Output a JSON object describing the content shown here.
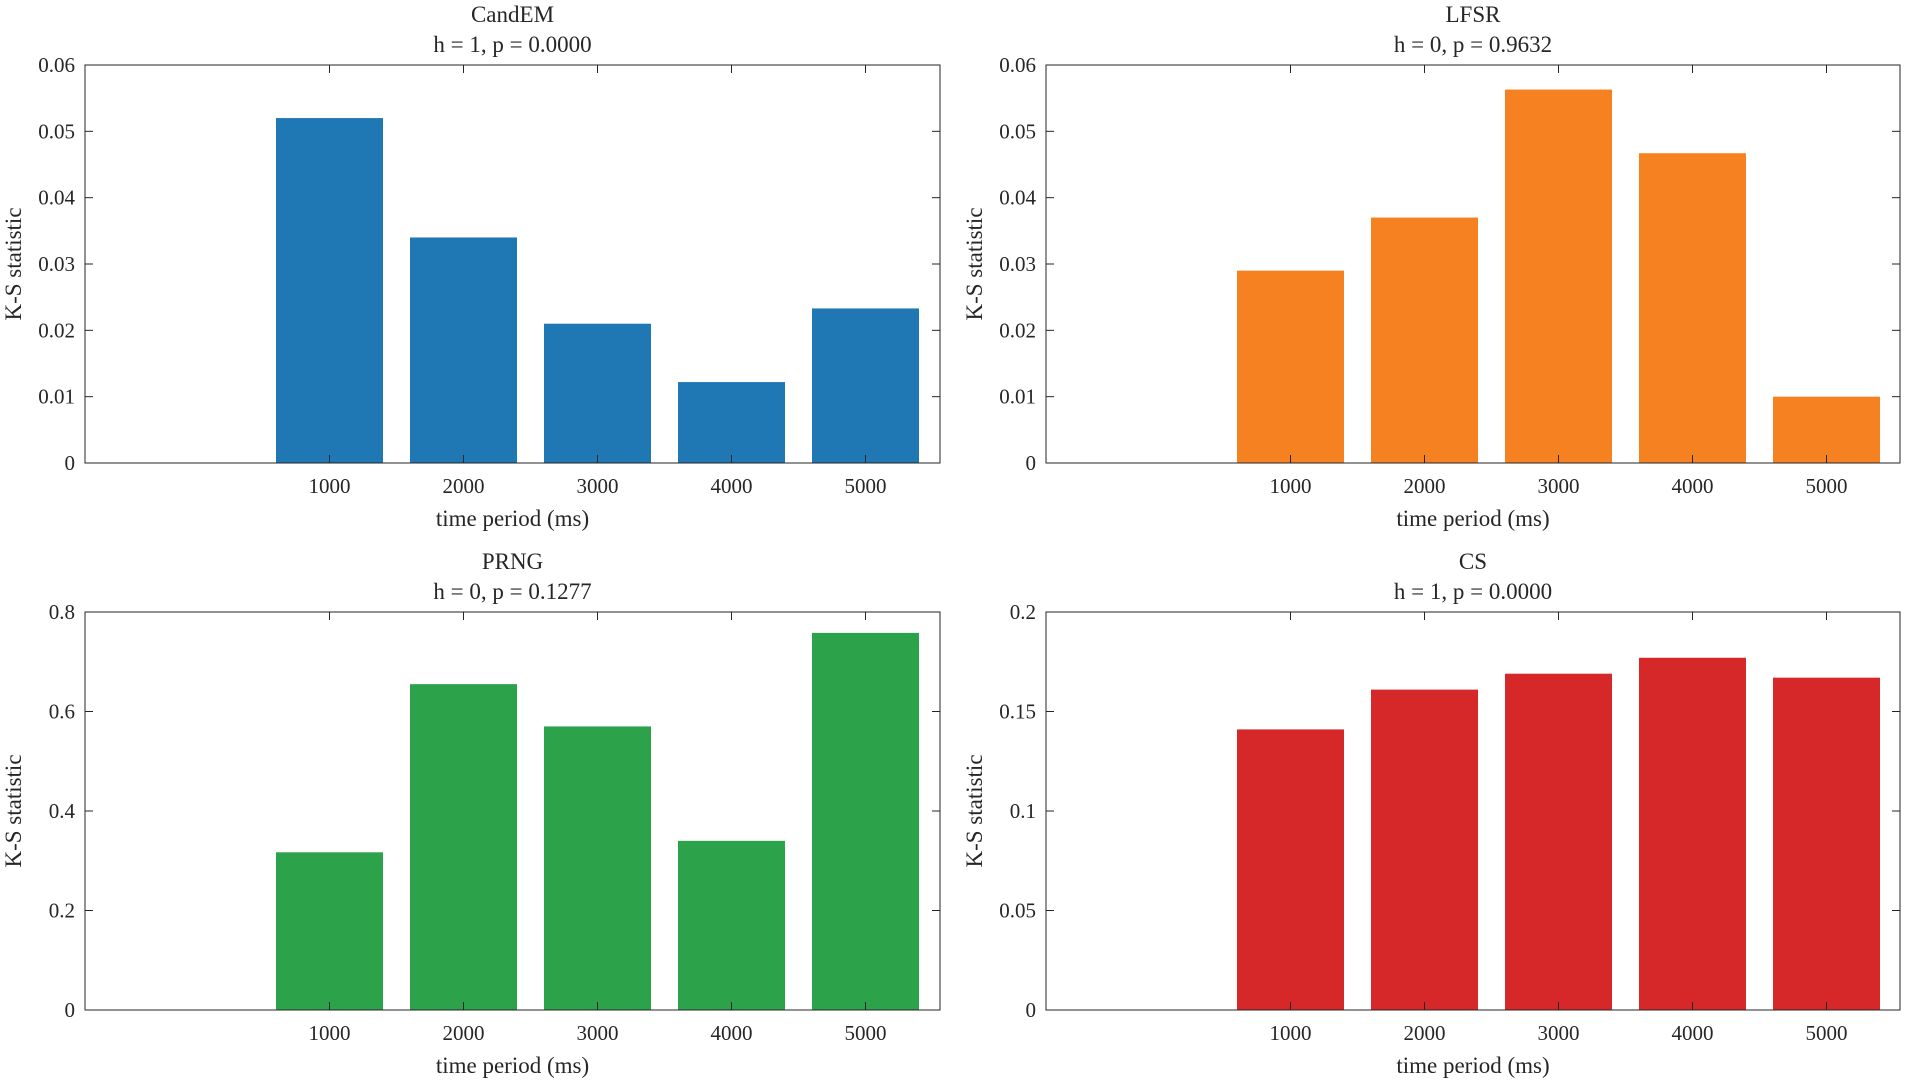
{
  "chart_data": [
    {
      "type": "bar",
      "title": "CandEM",
      "subtitle": "h = 1, p = 0.0000",
      "xlabel": "time period (ms)",
      "ylabel": "K-S statistic",
      "categories": [
        "1000",
        "2000",
        "3000",
        "4000",
        "5000"
      ],
      "values": [
        0.052,
        0.034,
        0.021,
        0.0122,
        0.0233
      ],
      "ylim": [
        0,
        0.06
      ],
      "yticks": [
        0,
        0.01,
        0.02,
        0.03,
        0.04,
        0.05,
        0.06
      ],
      "ytick_labels": [
        "0",
        "0.01",
        "0.02",
        "0.03",
        "0.04",
        "0.05",
        "0.06"
      ],
      "color": "#1f77b4",
      "grid": false
    },
    {
      "type": "bar",
      "title": "LFSR",
      "subtitle": "h = 0, p = 0.9632",
      "xlabel": "time period (ms)",
      "ylabel": "K-S statistic",
      "categories": [
        "1000",
        "2000",
        "3000",
        "4000",
        "5000"
      ],
      "values": [
        0.029,
        0.037,
        0.0563,
        0.0467,
        0.01
      ],
      "ylim": [
        0,
        0.06
      ],
      "yticks": [
        0,
        0.01,
        0.02,
        0.03,
        0.04,
        0.05,
        0.06
      ],
      "ytick_labels": [
        "0",
        "0.01",
        "0.02",
        "0.03",
        "0.04",
        "0.05",
        "0.06"
      ],
      "color": "#f58120",
      "grid": false
    },
    {
      "type": "bar",
      "title": "PRNG",
      "subtitle": "h = 0, p = 0.1277",
      "xlabel": "time period (ms)",
      "ylabel": "K-S statistic",
      "categories": [
        "1000",
        "2000",
        "3000",
        "4000",
        "5000"
      ],
      "values": [
        0.317,
        0.655,
        0.57,
        0.34,
        0.758
      ],
      "ylim": [
        0,
        0.8
      ],
      "yticks": [
        0,
        0.2,
        0.4,
        0.6,
        0.8
      ],
      "ytick_labels": [
        "0",
        "0.2",
        "0.4",
        "0.6",
        "0.8"
      ],
      "color": "#2ca24a",
      "grid": false
    },
    {
      "type": "bar",
      "title": "CS",
      "subtitle": "h = 1, p = 0.0000",
      "xlabel": "time period (ms)",
      "ylabel": "K-S statistic",
      "categories": [
        "1000",
        "2000",
        "3000",
        "4000",
        "5000"
      ],
      "values": [
        0.141,
        0.161,
        0.169,
        0.177,
        0.167
      ],
      "ylim": [
        0,
        0.2
      ],
      "yticks": [
        0,
        0.05,
        0.1,
        0.15,
        0.2
      ],
      "ytick_labels": [
        "0",
        "0.05",
        "0.1",
        "0.15",
        "0.2"
      ],
      "color": "#d62828",
      "grid": false
    }
  ]
}
